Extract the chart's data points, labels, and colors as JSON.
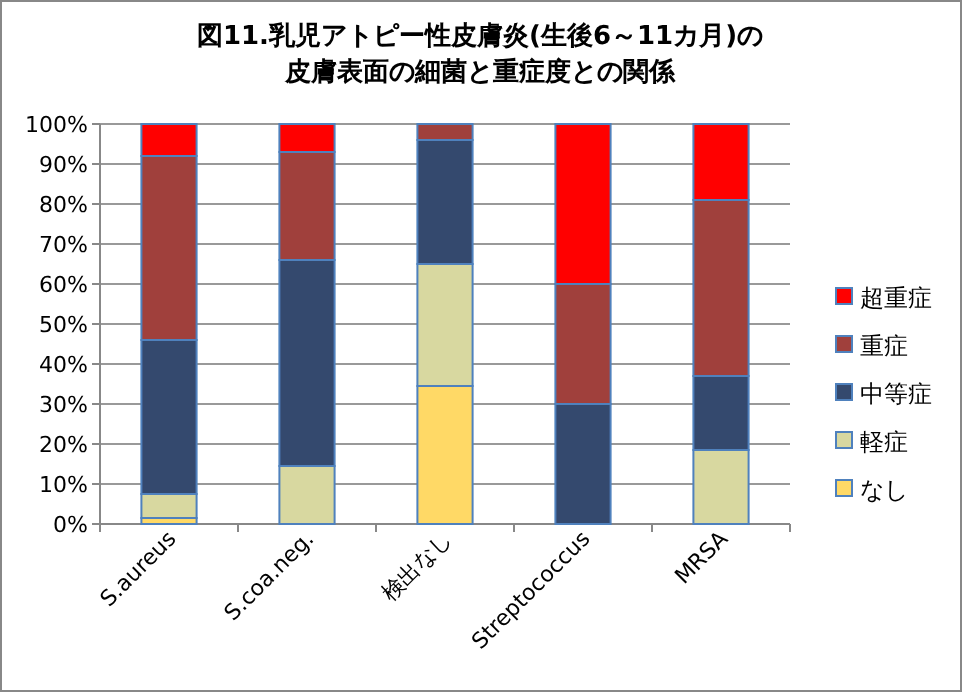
{
  "chart_data": {
    "type": "bar",
    "stacked": true,
    "title": "図11.乳児アトピー性皮膚炎(生後6～11カ月)の皮膚表面の細菌と重症度との関係",
    "categories": [
      "S.aureus",
      "S.coa.neg.",
      "検出なし",
      "Streptococcus",
      "MRSA"
    ],
    "series": [
      {
        "name": "なし",
        "color": "#ffd966",
        "values": [
          1.5,
          0,
          34.5,
          0,
          0
        ]
      },
      {
        "name": "軽症",
        "color": "#d8d8a0",
        "values": [
          6,
          14.5,
          30.5,
          0,
          18.5
        ]
      },
      {
        "name": "中等症",
        "color": "#34496e",
        "values": [
          38.5,
          51.5,
          31,
          30,
          18.5
        ]
      },
      {
        "name": "重症",
        "color": "#a0403c",
        "values": [
          46,
          27,
          4,
          30,
          44
        ]
      },
      {
        "name": "超重症",
        "color": "#ff0000",
        "values": [
          8,
          7,
          0,
          40,
          19
        ]
      }
    ],
    "ylim": [
      0,
      100
    ],
    "yticks": [
      {
        "value": 0,
        "label": "0%"
      },
      {
        "value": 10,
        "label": "10%"
      },
      {
        "value": 20,
        "label": "20%"
      },
      {
        "value": 30,
        "label": "30%"
      },
      {
        "value": 40,
        "label": "40%"
      },
      {
        "value": 50,
        "label": "50%"
      },
      {
        "value": 60,
        "label": "60%"
      },
      {
        "value": 70,
        "label": "70%"
      },
      {
        "value": 80,
        "label": "80%"
      },
      {
        "value": 90,
        "label": "90%"
      },
      {
        "value": 100,
        "label": "100%"
      }
    ],
    "grid": "y",
    "legend": "right"
  }
}
